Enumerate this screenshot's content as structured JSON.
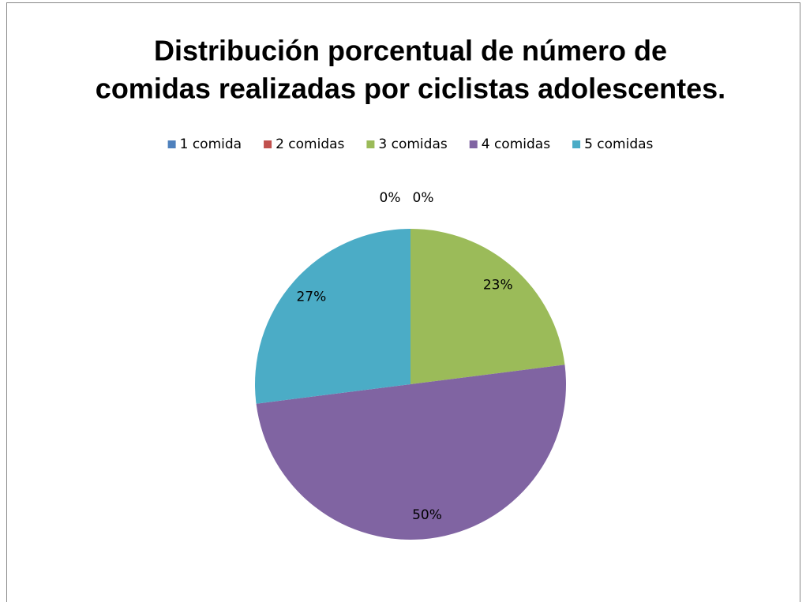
{
  "chart_data": {
    "type": "pie",
    "title": [
      "Distribución porcentual de número de",
      "comidas realizadas por ciclistas adolescentes."
    ],
    "categories": [
      "1 comida",
      "2 comidas",
      "3 comidas",
      "4 comidas",
      "5 comidas"
    ],
    "values": [
      0,
      0,
      23,
      50,
      27
    ],
    "value_labels": [
      "0%",
      "0%",
      "23%",
      "50%",
      "27%"
    ],
    "colors": [
      "#4f81bd",
      "#c0504d",
      "#9bbb59",
      "#8064a2",
      "#4bacc6"
    ],
    "legend": "top"
  }
}
